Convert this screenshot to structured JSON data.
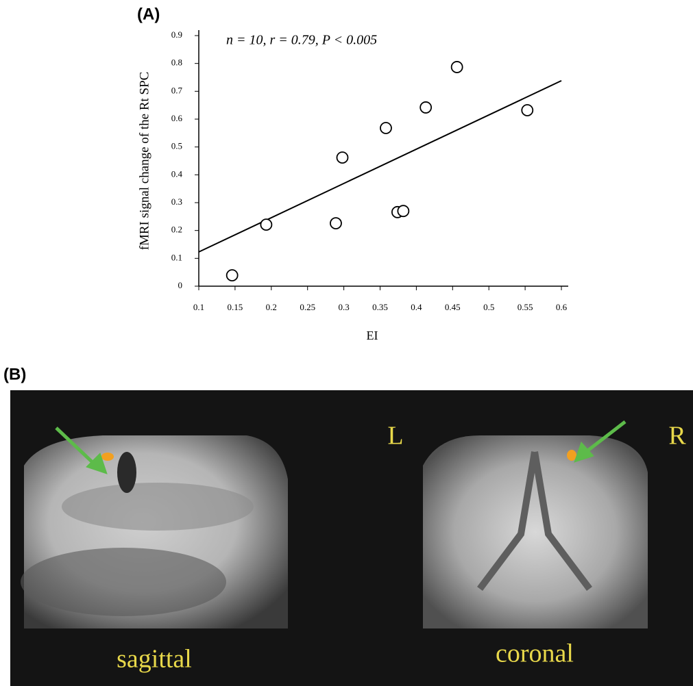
{
  "chart_data": {
    "type": "scatter",
    "panel_label": "(A)",
    "annotation": "n = 10, r = 0.79, P < 0.005",
    "x_label": "EI",
    "y_label": "fMRI signal change of the Rt SPC",
    "x": [
      0.146,
      0.193,
      0.289,
      0.298,
      0.358,
      0.374,
      0.382,
      0.413,
      0.456,
      0.553
    ],
    "values": [
      0.039,
      0.221,
      0.226,
      0.462,
      0.568,
      0.266,
      0.27,
      0.642,
      0.787,
      0.632
    ],
    "fit_line": {
      "x": [
        0.1,
        0.6
      ],
      "y": [
        0.123,
        0.738
      ]
    },
    "xlim": [
      0.1,
      0.6
    ],
    "ylim": [
      0,
      0.9
    ],
    "xticks": [
      0.1,
      0.15,
      0.2,
      0.25,
      0.3,
      0.35,
      0.4,
      0.45,
      0.5,
      0.55,
      0.6
    ],
    "yticks": [
      0,
      0.1,
      0.2,
      0.3,
      0.4,
      0.5,
      0.6,
      0.7,
      0.8,
      0.9
    ]
  },
  "panel_b": {
    "label": "(B)",
    "left_image_label": "sagittal",
    "right_image_label": "coronal",
    "left_marker": "L",
    "right_marker": "R"
  }
}
